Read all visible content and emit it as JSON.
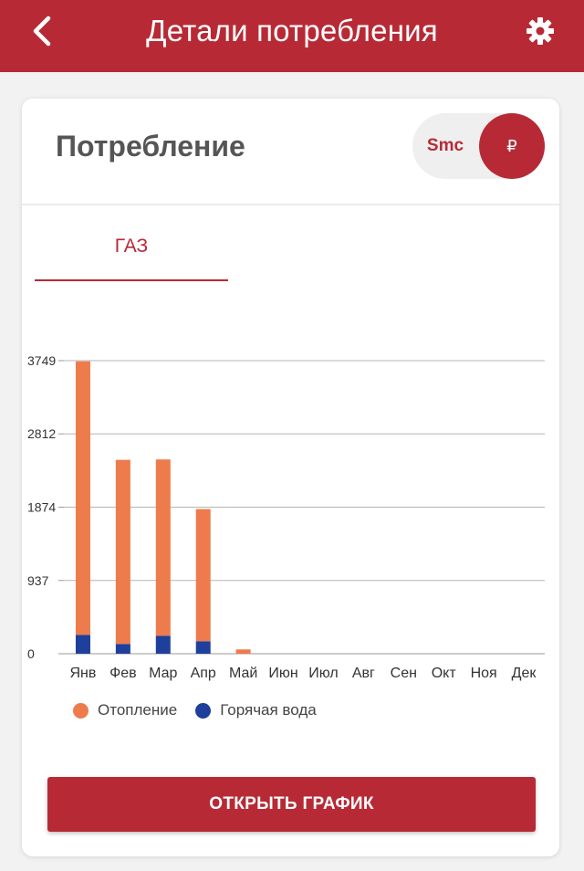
{
  "header": {
    "title": "Детали потребления",
    "back_icon": "chevron-left-icon",
    "settings_icon": "gear-icon",
    "background_color": "#b72a35"
  },
  "card": {
    "title": "Потребление",
    "toggle": {
      "smc_label": "Smc",
      "rub_label": "₽",
      "selected": "rub"
    },
    "tab_label": "ГАЗ",
    "button_label": "ОТКРЫТЬ ГРАФИК"
  },
  "chart_data": {
    "type": "bar",
    "stacked": true,
    "categories": [
      "Янв",
      "Фев",
      "Мар",
      "Апр",
      "Май",
      "Июн",
      "Июл",
      "Авг",
      "Сен",
      "Окт",
      "Ноя",
      "Дек"
    ],
    "series": [
      {
        "name": "Горячая вода",
        "color": "#1e3f9b",
        "values": [
          240,
          125,
          230,
          160,
          0,
          0,
          0,
          0,
          0,
          0,
          0,
          0
        ]
      },
      {
        "name": "Отопление",
        "color": "#ee7b4c",
        "values": [
          3500,
          2355,
          2255,
          1690,
          55,
          0,
          0,
          0,
          0,
          0,
          0,
          0
        ]
      }
    ],
    "yticks": [
      "0",
      "937",
      "1874",
      "2812",
      "3749"
    ],
    "ylim": [
      0,
      3749
    ],
    "grid": true,
    "legend": "bottom-left"
  }
}
